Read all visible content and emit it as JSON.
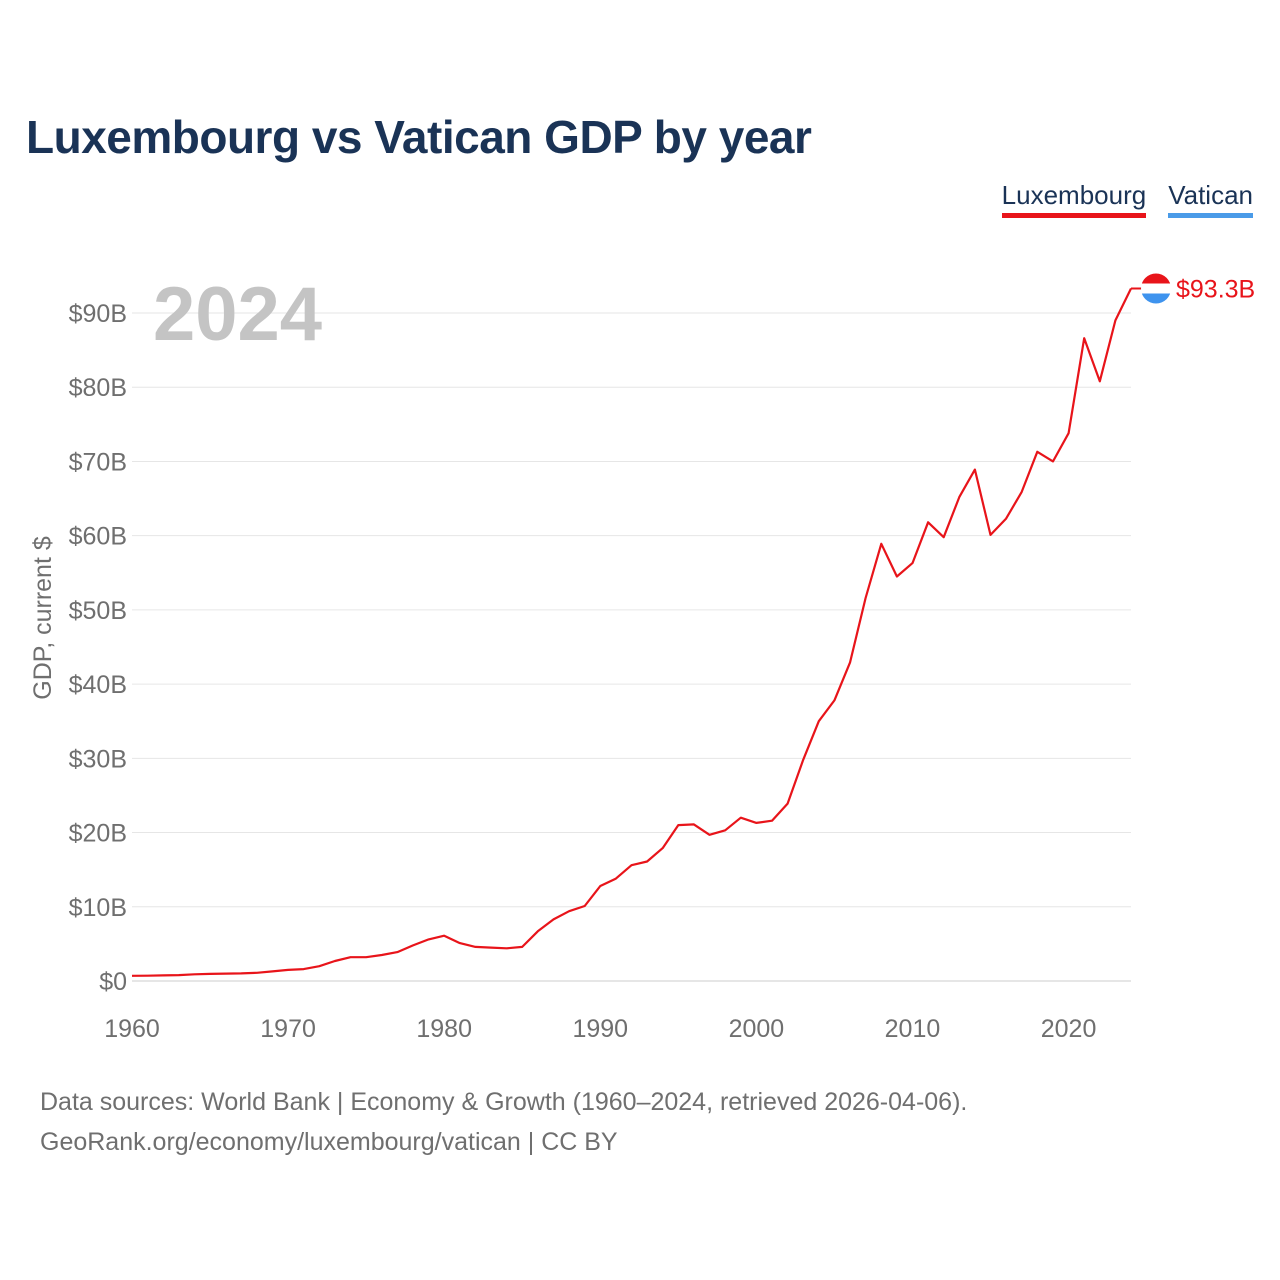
{
  "page": {
    "title": "Luxembourg vs Vatican GDP by year",
    "footer_line1": "Data sources: World Bank | Economy & Growth (1960–2024, retrieved 2026-04-06).",
    "footer_line2": "GeoRank.org/economy/luxembourg/vatican | CC BY"
  },
  "legend": [
    {
      "name": "Luxembourg",
      "color": "#e8141a"
    },
    {
      "name": "Vatican",
      "color": "#4a9be8"
    }
  ],
  "chart_data": {
    "type": "line",
    "title": "Luxembourg vs Vatican GDP by year",
    "xlabel": "",
    "ylabel": "GDP, current $",
    "year_label": "2024",
    "end_label": "$93.3B",
    "xlim": [
      1960,
      2024
    ],
    "ylim": [
      0,
      95
    ],
    "x_ticks": [
      1960,
      1970,
      1980,
      1990,
      2000,
      2010,
      2020
    ],
    "x_tick_labels": [
      "1960",
      "1970",
      "1980",
      "1990",
      "2000",
      "2010",
      "2020"
    ],
    "y_ticks": [
      0,
      10,
      20,
      30,
      40,
      50,
      60,
      70,
      80,
      90
    ],
    "y_tick_labels": [
      "$0",
      "$10B",
      "$20B",
      "$30B",
      "$40B",
      "$50B",
      "$60B",
      "$70B",
      "$80B",
      "$90B"
    ],
    "grid": true,
    "series": [
      {
        "name": "Luxembourg",
        "color": "#e8141a",
        "x": [
          1960,
          1961,
          1962,
          1963,
          1964,
          1965,
          1966,
          1967,
          1968,
          1969,
          1970,
          1971,
          1972,
          1973,
          1974,
          1975,
          1976,
          1977,
          1978,
          1979,
          1980,
          1981,
          1982,
          1983,
          1984,
          1985,
          1986,
          1987,
          1988,
          1989,
          1990,
          1991,
          1992,
          1993,
          1994,
          1995,
          1996,
          1997,
          1998,
          1999,
          2000,
          2001,
          2002,
          2003,
          2004,
          2005,
          2006,
          2007,
          2008,
          2009,
          2010,
          2011,
          2012,
          2013,
          2014,
          2015,
          2016,
          2017,
          2018,
          2019,
          2020,
          2021,
          2022,
          2023,
          2024
        ],
        "values": [
          0.7,
          0.72,
          0.75,
          0.8,
          0.9,
          0.95,
          1.0,
          1.02,
          1.1,
          1.3,
          1.5,
          1.6,
          2.0,
          2.7,
          3.2,
          3.2,
          3.5,
          3.9,
          4.8,
          5.6,
          6.1,
          5.1,
          4.6,
          4.5,
          4.4,
          4.6,
          6.7,
          8.3,
          9.4,
          10.1,
          12.8,
          13.8,
          15.6,
          16.1,
          17.9,
          21.0,
          21.1,
          19.7,
          20.3,
          22.0,
          21.3,
          21.6,
          23.9,
          29.8,
          35.0,
          37.8,
          42.9,
          51.6,
          58.9,
          54.5,
          56.3,
          61.8,
          59.8,
          65.2,
          68.9,
          60.1,
          62.3,
          65.9,
          71.3,
          70.0,
          73.8,
          86.6,
          80.8,
          89.0,
          93.3
        ]
      },
      {
        "name": "Vatican",
        "color": "#4a9be8",
        "x": [],
        "values": []
      }
    ]
  }
}
